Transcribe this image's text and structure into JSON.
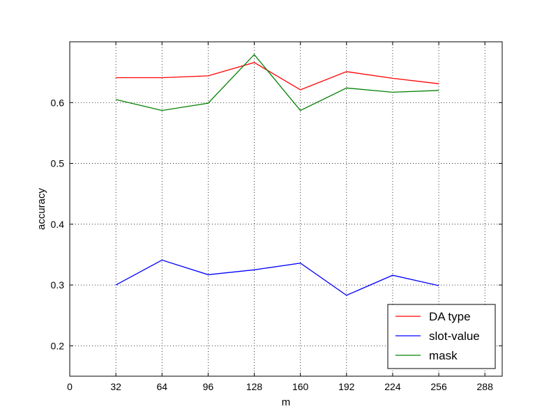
{
  "chart_data": {
    "type": "line",
    "title": "",
    "xlabel": "m",
    "ylabel": "accuracy",
    "xlim": [
      0,
      300
    ],
    "ylim": [
      0.15,
      0.7
    ],
    "xticks": [
      0,
      32,
      64,
      96,
      128,
      160,
      192,
      224,
      256,
      288
    ],
    "yticks": [
      0.2,
      0.3,
      0.4,
      0.5,
      0.6
    ],
    "x": [
      32,
      64,
      96,
      128,
      160,
      192,
      224,
      256
    ],
    "series": [
      {
        "name": "DA type",
        "color": "#ff0000",
        "values": [
          0.641,
          0.641,
          0.644,
          0.666,
          0.621,
          0.651,
          0.64,
          0.631
        ]
      },
      {
        "name": "slot-value",
        "color": "#0000ff",
        "values": [
          0.3,
          0.341,
          0.317,
          0.325,
          0.336,
          0.283,
          0.316,
          0.299
        ]
      },
      {
        "name": "mask",
        "color": "#008000",
        "values": [
          0.605,
          0.587,
          0.599,
          0.679,
          0.587,
          0.624,
          0.617,
          0.62
        ]
      }
    ],
    "grid": true,
    "legend_position": "lower-right"
  }
}
